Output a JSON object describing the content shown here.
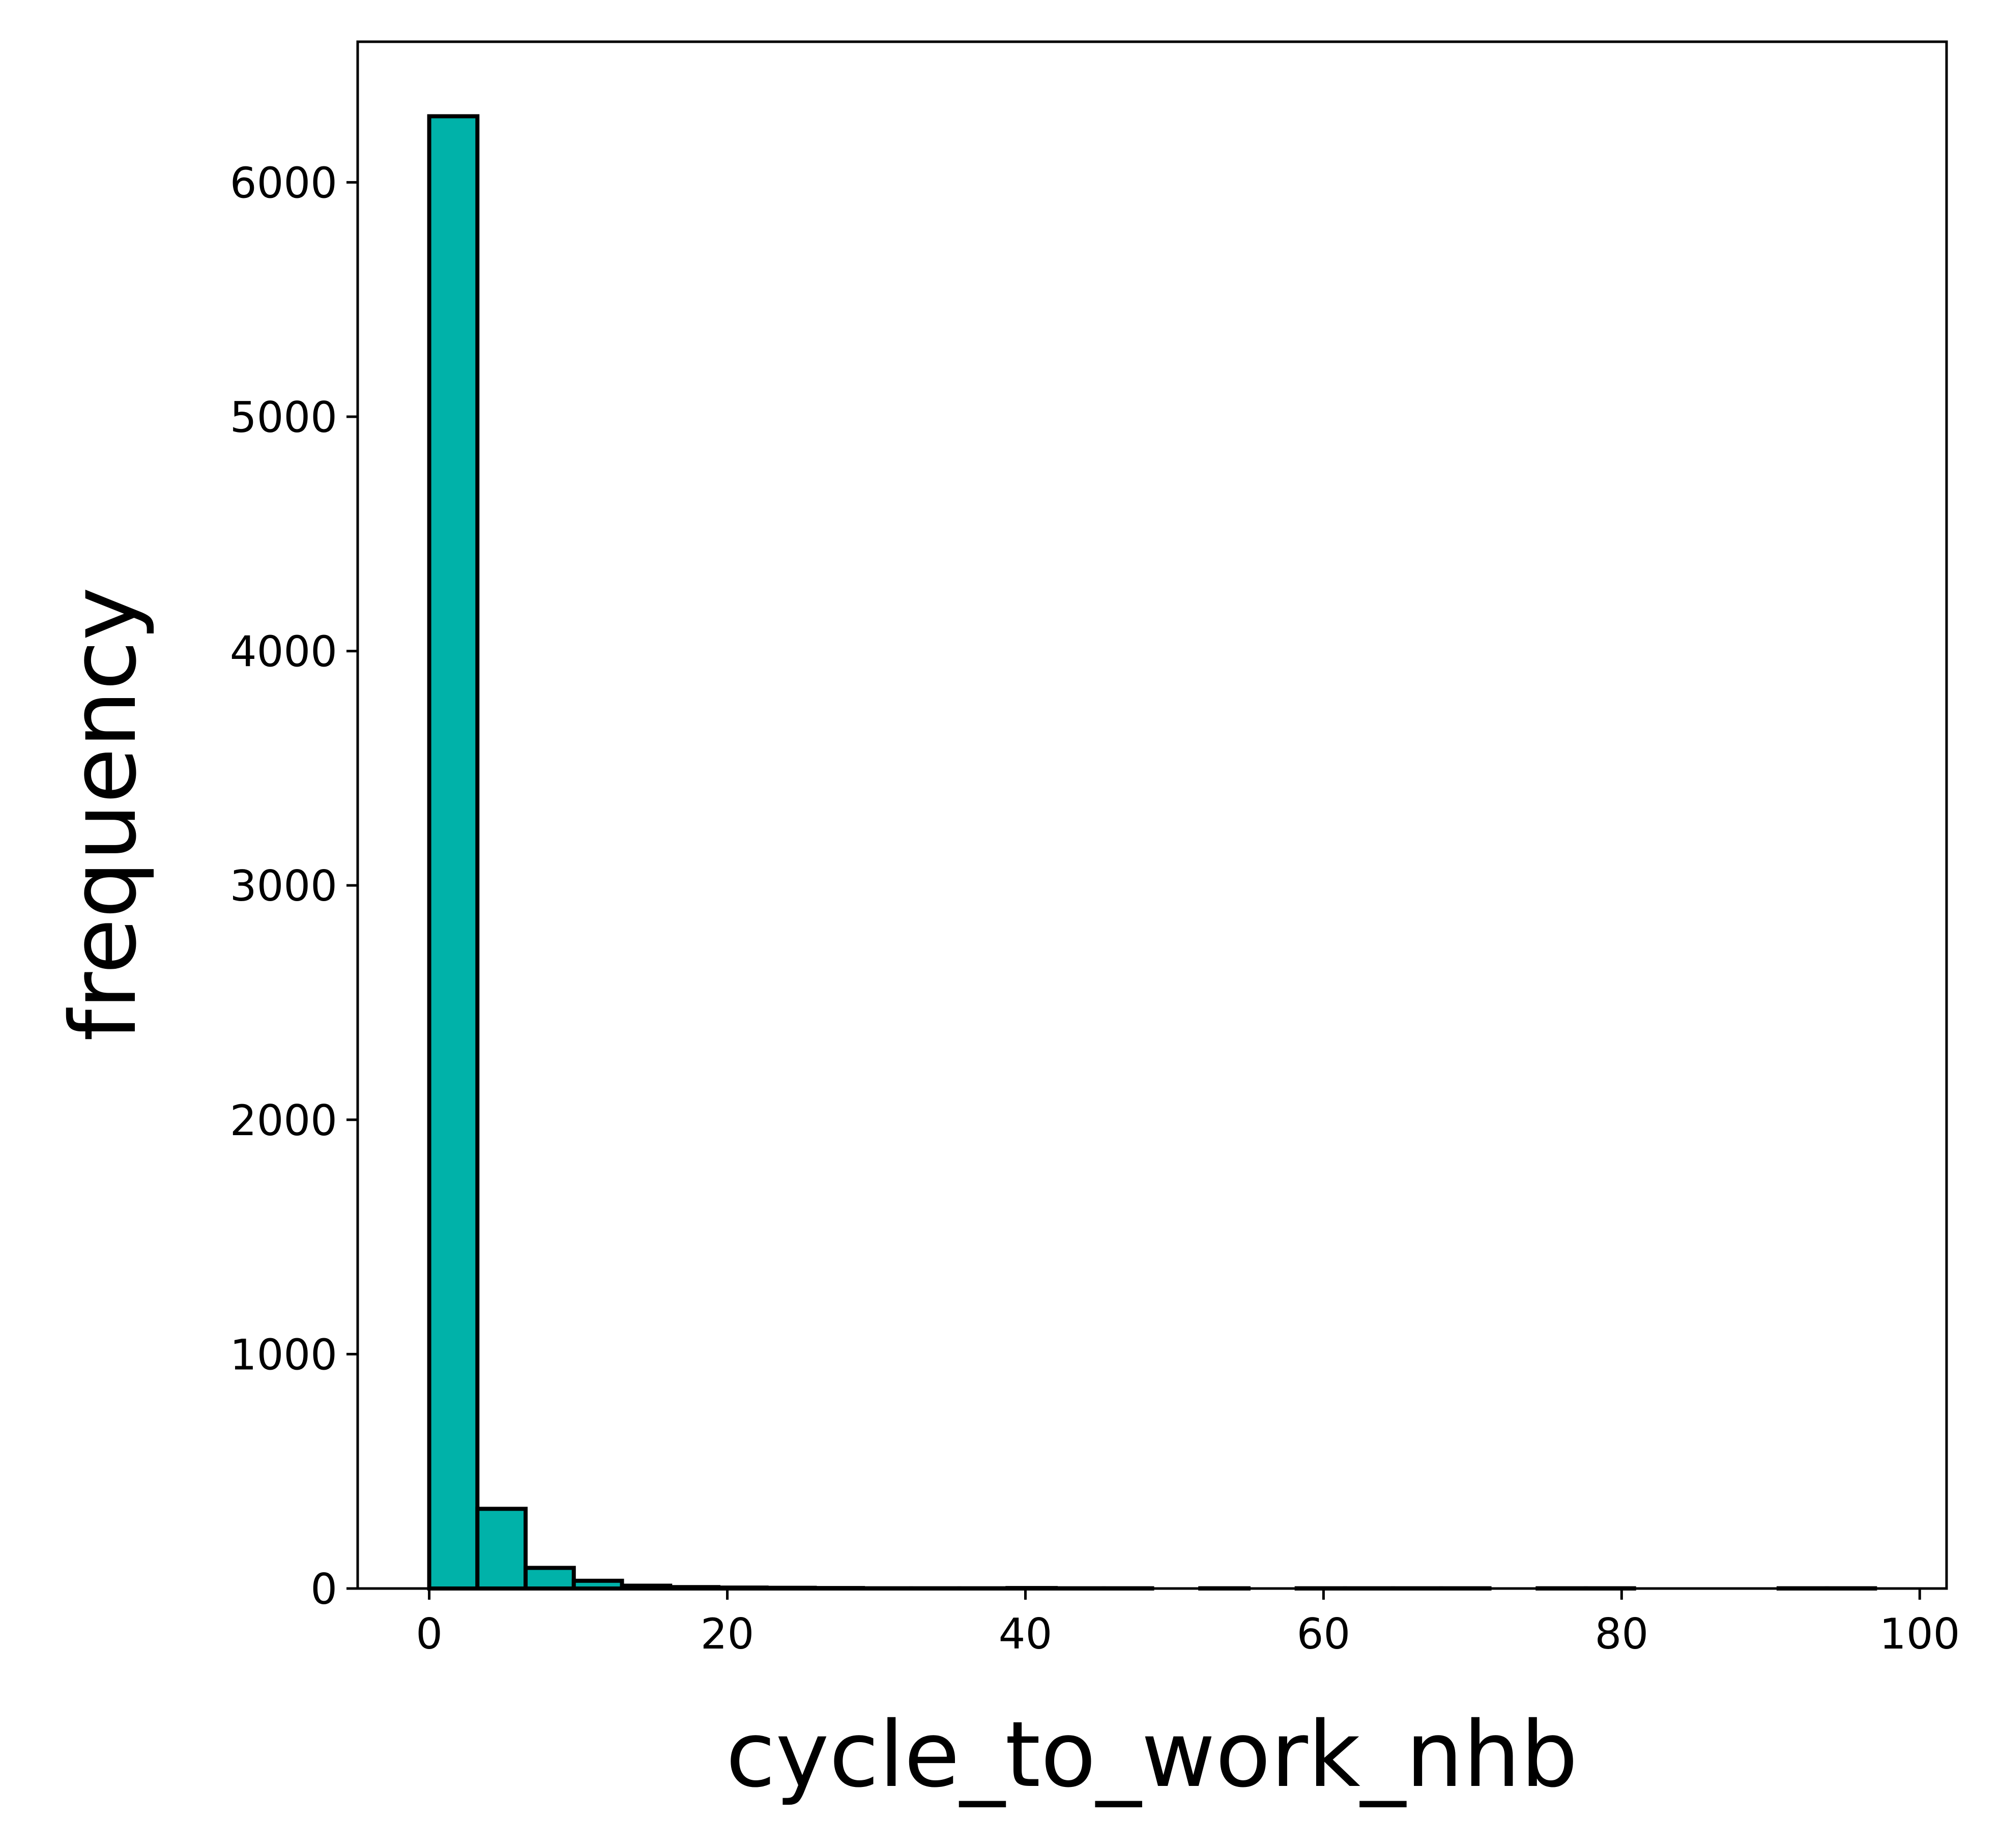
{
  "chart_data": {
    "type": "bar",
    "subtype": "histogram",
    "xlabel": "cycle_to_work_nhb",
    "ylabel": "frequency",
    "bar_color": "#00b2a9",
    "edge_color": "#000000",
    "xlim": [
      -4.8,
      101.8
    ],
    "ylim": [
      0,
      6600
    ],
    "xticks": [
      0,
      20,
      40,
      60,
      80,
      100
    ],
    "yticks": [
      0,
      1000,
      2000,
      3000,
      4000,
      5000,
      6000
    ],
    "bins": [
      {
        "x0": 0.0,
        "x1": 3.233,
        "value": 6282
      },
      {
        "x0": 3.233,
        "x1": 6.467,
        "value": 340
      },
      {
        "x0": 6.467,
        "x1": 9.7,
        "value": 88
      },
      {
        "x0": 9.7,
        "x1": 12.933,
        "value": 33
      },
      {
        "x0": 12.933,
        "x1": 16.167,
        "value": 12
      },
      {
        "x0": 16.167,
        "x1": 19.4,
        "value": 6
      },
      {
        "x0": 19.4,
        "x1": 22.633,
        "value": 4
      },
      {
        "x0": 22.633,
        "x1": 25.867,
        "value": 3
      },
      {
        "x0": 25.867,
        "x1": 29.1,
        "value": 2
      },
      {
        "x0": 29.1,
        "x1": 32.333,
        "value": 1
      },
      {
        "x0": 32.333,
        "x1": 35.567,
        "value": 1
      },
      {
        "x0": 35.567,
        "x1": 38.8,
        "value": 1
      },
      {
        "x0": 38.8,
        "x1": 42.033,
        "value": 2
      },
      {
        "x0": 42.033,
        "x1": 45.267,
        "value": 1
      },
      {
        "x0": 45.267,
        "x1": 48.5,
        "value": 1
      },
      {
        "x0": 48.5,
        "x1": 51.733,
        "value": 0
      },
      {
        "x0": 51.733,
        "x1": 54.967,
        "value": 1
      },
      {
        "x0": 54.967,
        "x1": 58.2,
        "value": 0
      },
      {
        "x0": 58.2,
        "x1": 61.433,
        "value": 1
      },
      {
        "x0": 61.433,
        "x1": 64.667,
        "value": 1
      },
      {
        "x0": 64.667,
        "x1": 67.9,
        "value": 1
      },
      {
        "x0": 67.9,
        "x1": 71.133,
        "value": 1
      },
      {
        "x0": 71.133,
        "x1": 74.367,
        "value": 0
      },
      {
        "x0": 74.367,
        "x1": 77.6,
        "value": 1
      },
      {
        "x0": 77.6,
        "x1": 80.833,
        "value": 1
      },
      {
        "x0": 80.833,
        "x1": 84.067,
        "value": 0
      },
      {
        "x0": 84.067,
        "x1": 87.3,
        "value": 0
      },
      {
        "x0": 87.3,
        "x1": 90.533,
        "value": 0
      },
      {
        "x0": 90.533,
        "x1": 93.767,
        "value": 1
      },
      {
        "x0": 93.767,
        "x1": 97.0,
        "value": 1
      }
    ]
  }
}
